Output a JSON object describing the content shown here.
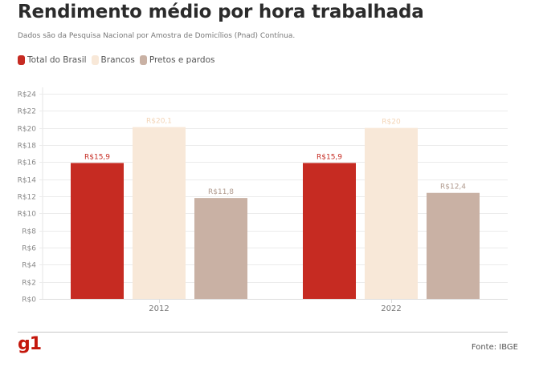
{
  "header": {
    "title": "Rendimento médio por hora trabalhada",
    "subtitle": "Dados são da Pesquisa Nacional por Amostra de Domicílios (Pnad) Contínua."
  },
  "legend": [
    {
      "label": "Total do Brasil",
      "color": "#c62b22"
    },
    {
      "label": "Brancos",
      "color": "#f8e8d8"
    },
    {
      "label": "Pretos e pardos",
      "color": "#c9b1a4"
    }
  ],
  "chart_data": {
    "type": "bar",
    "title": "Rendimento médio por hora trabalhada",
    "xlabel": "",
    "ylabel": "",
    "categories": [
      "2012",
      "2022"
    ],
    "series": [
      {
        "name": "Total do Brasil",
        "color": "#c62b22",
        "label_color": "#c62b22",
        "values": [
          15.9,
          15.9
        ],
        "labels": [
          "R$15,9",
          "R$15,9"
        ]
      },
      {
        "name": "Brancos",
        "color": "#f8e8d8",
        "label_color": "#f3d4b6",
        "values": [
          20.1,
          20
        ],
        "labels": [
          "R$20,1",
          "R$20"
        ]
      },
      {
        "name": "Pretos e pardos",
        "color": "#c9b1a4",
        "label_color": "#b09a8e",
        "values": [
          11.8,
          12.4
        ],
        "labels": [
          "R$11,8",
          "R$12,4"
        ]
      }
    ],
    "ylim": [
      0,
      24
    ],
    "yticks": [
      0,
      2,
      4,
      6,
      8,
      10,
      12,
      14,
      16,
      18,
      20,
      22,
      24
    ],
    "ytick_labels": [
      "R$0",
      "R$2",
      "R$4",
      "R$6",
      "R$8",
      "R$10",
      "R$12",
      "R$14",
      "R$16",
      "R$18",
      "R$20",
      "R$22",
      "R$24"
    ],
    "grid": true,
    "legend_position": "top-left"
  },
  "footer": {
    "logo": "g1",
    "source": "Fonte: IBGE"
  }
}
